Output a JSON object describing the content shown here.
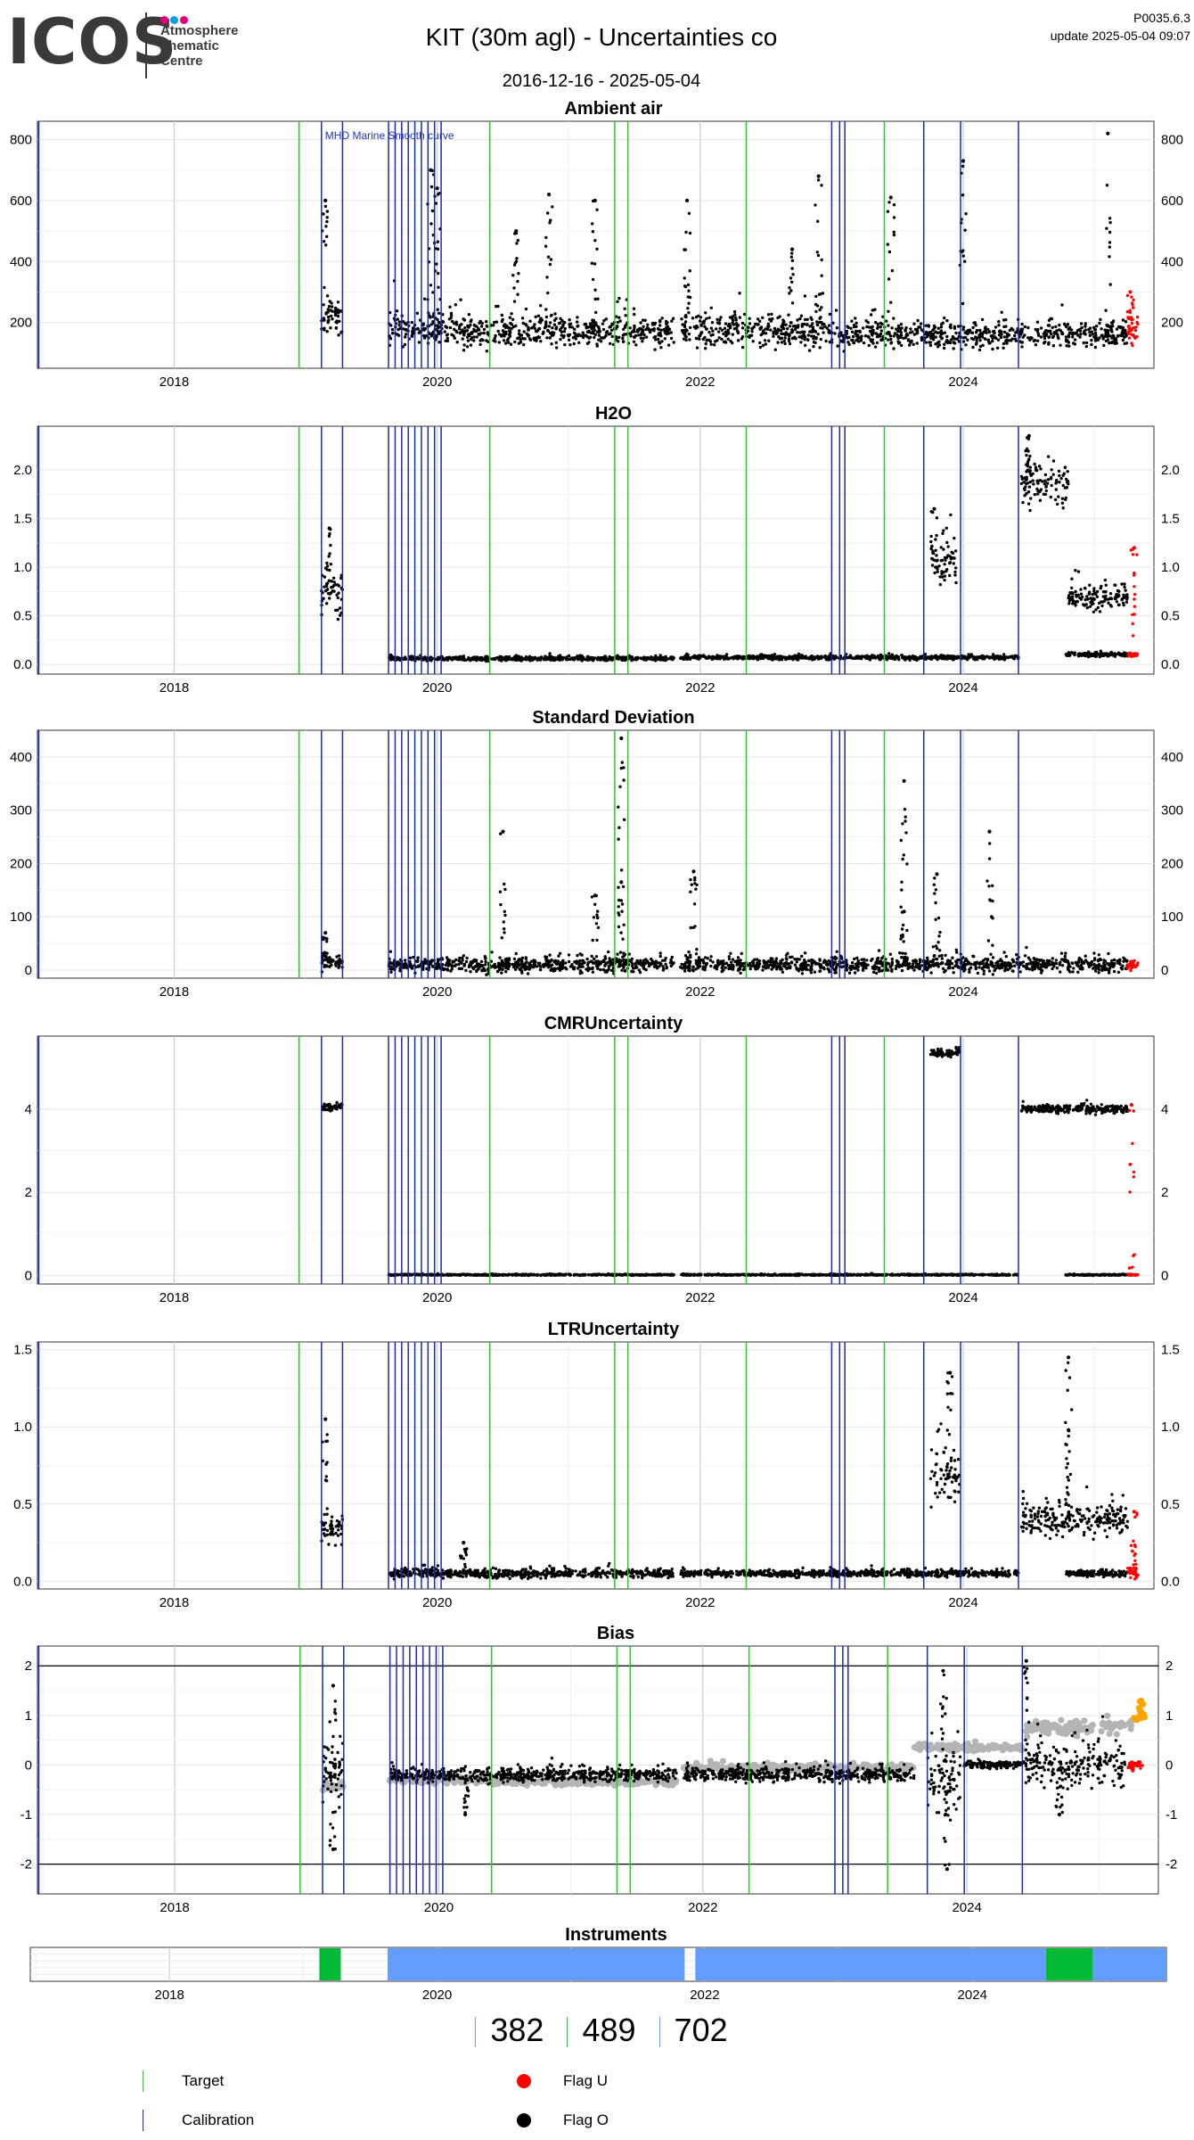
{
  "header": {
    "logo_text": "ICOS",
    "logo_sub": [
      "Atmosphere",
      "Thematic",
      "Centre"
    ],
    "title": "KIT  (30m agl) - Uncertainties co",
    "date_range": "2016-12-16 - 2025-05-04",
    "version": "P0035.6.3",
    "update": "update  2025-05-04 09:07"
  },
  "colors": {
    "target": "#22cc22",
    "calibration": "#1a2bb0",
    "flag_u": "#ff0000",
    "flag_o": "#000000",
    "grey_series": "#b4b4b4",
    "orange": "#ffa500",
    "logo_dots": [
      "#e6007e",
      "#00a0e3",
      "#e6007e"
    ]
  },
  "chart_data": [
    {
      "type": "scatter",
      "id": "ambient",
      "title": "Ambient air",
      "ylim": [
        50,
        860
      ],
      "yticks": [
        200,
        400,
        600,
        800
      ],
      "xticks": [
        "2018",
        "2020",
        "2022",
        "2024"
      ],
      "annotation": "MHD Marine Smooth curve",
      "target_lines": [
        2018.95,
        2020.4,
        2021.35,
        2021.45,
        2022.35,
        2023.4
      ],
      "calibration_lines": [
        2016.97,
        2019.12,
        2019.28,
        2019.63,
        2019.68,
        2019.73,
        2019.78,
        2019.83,
        2019.88,
        2019.93,
        2019.98,
        2020.03,
        2023.0,
        2023.06,
        2023.1,
        2023.7,
        2023.98,
        2024.42
      ],
      "series": [
        {
          "name": "Flag O",
          "segments": [
            {
              "x0": 2019.12,
              "x1": 2019.28,
              "base": 210,
              "spread": 90,
              "peaks": [
                [
                  2019.15,
                  600
                ]
              ]
            },
            {
              "x0": 2019.63,
              "x1": 2020.05,
              "base": 180,
              "spread": 80,
              "peaks": [
                [
                  2019.95,
                  700
                ],
                [
                  2020.0,
                  640
                ]
              ]
            },
            {
              "x0": 2020.05,
              "x1": 2021.8,
              "base": 170,
              "spread": 70,
              "peaks": [
                [
                  2020.85,
                  620
                ],
                [
                  2021.2,
                  600
                ],
                [
                  2020.6,
                  500
                ]
              ]
            },
            {
              "x0": 2021.85,
              "x1": 2023.05,
              "base": 175,
              "spread": 80,
              "peaks": [
                [
                  2021.9,
                  600
                ],
                [
                  2022.9,
                  680
                ],
                [
                  2022.7,
                  440
                ]
              ]
            },
            {
              "x0": 2023.05,
              "x1": 2025.25,
              "base": 160,
              "spread": 60,
              "peaks": [
                [
                  2024.0,
                  730
                ],
                [
                  2025.1,
                  820
                ],
                [
                  2023.45,
                  610
                ]
              ]
            }
          ]
        },
        {
          "name": "Flag U",
          "segments": [
            {
              "x0": 2025.25,
              "x1": 2025.33,
              "base": 170,
              "spread": 60,
              "peaks": [
                [
                  2025.27,
                  300
                ]
              ]
            }
          ]
        }
      ]
    },
    {
      "type": "scatter",
      "id": "h2o",
      "title": "H2O",
      "ylim": [
        -0.1,
        2.45
      ],
      "yticks": [
        0.0,
        0.5,
        1.0,
        1.5,
        2.0
      ],
      "xticks": [
        "2018",
        "2020",
        "2022",
        "2024"
      ],
      "target_lines": [
        2018.95,
        2020.4,
        2021.35,
        2021.45,
        2022.35,
        2023.4
      ],
      "calibration_lines": [
        2016.97,
        2019.12,
        2019.28,
        2019.63,
        2019.68,
        2019.73,
        2019.78,
        2019.83,
        2019.88,
        2019.93,
        2019.98,
        2020.03,
        2023.0,
        2023.06,
        2023.1,
        2023.7,
        2023.98,
        2024.42
      ],
      "series": [
        {
          "name": "Flag O",
          "segments": [
            {
              "x0": 2019.12,
              "x1": 2019.28,
              "base": 0.75,
              "spread": 0.35,
              "peaks": [
                [
                  2019.18,
                  1.4
                ]
              ]
            },
            {
              "x0": 2019.63,
              "x1": 2021.8,
              "base": 0.06,
              "spread": 0.03,
              "peaks": []
            },
            {
              "x0": 2021.85,
              "x1": 2024.42,
              "base": 0.07,
              "spread": 0.03,
              "peaks": []
            },
            {
              "x0": 2023.75,
              "x1": 2023.95,
              "base": 1.05,
              "spread": 0.3,
              "peaks": [
                [
                  2023.78,
                  1.6
                ]
              ]
            },
            {
              "x0": 2024.44,
              "x1": 2024.8,
              "base": 1.85,
              "spread": 0.35,
              "peaks": [
                [
                  2024.5,
                  2.35
                ]
              ]
            },
            {
              "x0": 2024.8,
              "x1": 2025.25,
              "base": 0.7,
              "spread": 0.2,
              "peaks": []
            },
            {
              "x0": 2024.78,
              "x1": 2025.25,
              "base": 0.1,
              "spread": 0.03,
              "peaks": []
            }
          ]
        },
        {
          "name": "Flag U",
          "segments": [
            {
              "x0": 2025.25,
              "x1": 2025.33,
              "base": 0.1,
              "spread": 0.03,
              "peaks": [
                [
                  2025.3,
                  1.2
                ]
              ]
            }
          ]
        }
      ]
    },
    {
      "type": "scatter",
      "id": "stddev",
      "title": "Standard Deviation",
      "ylim": [
        -15,
        450
      ],
      "yticks": [
        0,
        100,
        200,
        300,
        400
      ],
      "xticks": [
        "2018",
        "2020",
        "2022",
        "2024"
      ],
      "target_lines": [
        2018.95,
        2020.4,
        2021.35,
        2021.45,
        2022.35,
        2023.4
      ],
      "calibration_lines": [
        2016.97,
        2019.12,
        2019.28,
        2019.63,
        2019.68,
        2019.73,
        2019.78,
        2019.83,
        2019.88,
        2019.93,
        2019.98,
        2020.03,
        2023.0,
        2023.06,
        2023.1,
        2023.7,
        2023.98,
        2024.42
      ],
      "series": [
        {
          "name": "Flag O",
          "segments": [
            {
              "x0": 2019.12,
              "x1": 2019.28,
              "base": 15,
              "spread": 20,
              "peaks": [
                [
                  2019.15,
                  70
                ]
              ]
            },
            {
              "x0": 2019.63,
              "x1": 2021.8,
              "base": 10,
              "spread": 20,
              "peaks": [
                [
                  2020.5,
                  260
                ],
                [
                  2021.4,
                  435
                ],
                [
                  2021.2,
                  140
                ],
                [
                  2021.4,
                  165
                ]
              ]
            },
            {
              "x0": 2021.85,
              "x1": 2025.25,
              "base": 10,
              "spread": 20,
              "peaks": [
                [
                  2021.95,
                  185
                ],
                [
                  2023.55,
                  355
                ],
                [
                  2024.2,
                  260
                ],
                [
                  2023.55,
                  110
                ],
                [
                  2023.8,
                  180
                ]
              ]
            }
          ]
        },
        {
          "name": "Flag U",
          "segments": [
            {
              "x0": 2025.25,
              "x1": 2025.33,
              "base": 10,
              "spread": 15,
              "peaks": []
            }
          ]
        }
      ]
    },
    {
      "type": "scatter",
      "id": "cmr",
      "title": "CMRUncertainty",
      "ylim": [
        -0.2,
        5.75
      ],
      "yticks": [
        0,
        2,
        4
      ],
      "xticks": [
        "2018",
        "2020",
        "2022",
        "2024"
      ],
      "target_lines": [
        2018.95,
        2020.4,
        2021.35,
        2021.45,
        2022.35,
        2023.4
      ],
      "calibration_lines": [
        2016.97,
        2019.12,
        2019.28,
        2019.63,
        2019.68,
        2019.73,
        2019.78,
        2019.83,
        2019.88,
        2019.93,
        2019.98,
        2020.03,
        2023.0,
        2023.06,
        2023.1,
        2023.7,
        2023.98,
        2024.42
      ],
      "series": [
        {
          "name": "Flag O",
          "segments": [
            {
              "x0": 2019.12,
              "x1": 2019.28,
              "base": 4.05,
              "spread": 0.12,
              "peaks": []
            },
            {
              "x0": 2019.63,
              "x1": 2021.8,
              "base": 0.02,
              "spread": 0.02,
              "peaks": []
            },
            {
              "x0": 2021.85,
              "x1": 2024.42,
              "base": 0.02,
              "spread": 0.02,
              "peaks": []
            },
            {
              "x0": 2023.75,
              "x1": 2023.98,
              "base": 5.35,
              "spread": 0.12,
              "peaks": []
            },
            {
              "x0": 2024.44,
              "x1": 2025.25,
              "base": 4.0,
              "spread": 0.15,
              "peaks": []
            },
            {
              "x0": 2024.78,
              "x1": 2025.25,
              "base": 0.02,
              "spread": 0.02,
              "peaks": []
            }
          ]
        },
        {
          "name": "Flag U",
          "segments": [
            {
              "x0": 2025.25,
              "x1": 2025.33,
              "base": 0.02,
              "spread": 0.02,
              "peaks": [
                [
                  2025.28,
                  4.1
                ]
              ]
            }
          ]
        }
      ]
    },
    {
      "type": "scatter",
      "id": "ltr",
      "title": "LTRUncertainty",
      "ylim": [
        -0.05,
        1.55
      ],
      "yticks": [
        0.0,
        0.5,
        1.0,
        1.5
      ],
      "xticks": [
        "2018",
        "2020",
        "2022",
        "2024"
      ],
      "target_lines": [
        2018.95,
        2020.4,
        2021.35,
        2021.45,
        2022.35,
        2023.4
      ],
      "calibration_lines": [
        2016.97,
        2019.12,
        2019.28,
        2019.63,
        2019.68,
        2019.73,
        2019.78,
        2019.83,
        2019.88,
        2019.93,
        2019.98,
        2020.03,
        2023.0,
        2023.06,
        2023.1,
        2023.7,
        2023.98,
        2024.42
      ],
      "series": [
        {
          "name": "Flag O",
          "segments": [
            {
              "x0": 2019.12,
              "x1": 2019.28,
              "base": 0.35,
              "spread": 0.15,
              "peaks": [
                [
                  2019.15,
                  1.05
                ]
              ]
            },
            {
              "x0": 2019.63,
              "x1": 2021.8,
              "base": 0.05,
              "spread": 0.04,
              "peaks": [
                [
                  2020.2,
                  0.25
                ]
              ]
            },
            {
              "x0": 2021.85,
              "x1": 2024.42,
              "base": 0.05,
              "spread": 0.03,
              "peaks": []
            },
            {
              "x0": 2023.75,
              "x1": 2023.98,
              "base": 0.65,
              "spread": 0.3,
              "peaks": [
                [
                  2023.9,
                  1.35
                ]
              ]
            },
            {
              "x0": 2024.44,
              "x1": 2025.25,
              "base": 0.4,
              "spread": 0.15,
              "peaks": [
                [
                  2024.8,
                  1.45
                ],
                [
                  2024.8,
                  0.98
                ]
              ]
            },
            {
              "x0": 2024.78,
              "x1": 2025.25,
              "base": 0.05,
              "spread": 0.03,
              "peaks": []
            }
          ]
        },
        {
          "name": "Flag U",
          "segments": [
            {
              "x0": 2025.25,
              "x1": 2025.33,
              "base": 0.06,
              "spread": 0.05,
              "peaks": [
                [
                  2025.3,
                  0.45
                ]
              ]
            }
          ]
        }
      ]
    },
    {
      "type": "scatter",
      "id": "bias",
      "title": "Bias",
      "ylim": [
        -2.6,
        2.4
      ],
      "yticks": [
        -2,
        -1,
        0,
        1,
        2
      ],
      "xticks": [
        "2018",
        "2020",
        "2022",
        "2024"
      ],
      "hlines": [
        -2,
        2
      ],
      "target_lines": [
        2018.95,
        2020.4,
        2021.35,
        2021.45,
        2022.35,
        2023.4
      ],
      "calibration_lines": [
        2016.97,
        2019.12,
        2019.28,
        2019.63,
        2019.68,
        2019.73,
        2019.78,
        2019.83,
        2019.88,
        2019.93,
        2019.98,
        2020.03,
        2023.0,
        2023.06,
        2023.1,
        2023.7,
        2023.98,
        2024.42
      ],
      "series": [
        {
          "name": "grey",
          "segments": [
            {
              "x0": 2019.12,
              "x1": 2019.28,
              "base": -0.45,
              "spread": 0.1,
              "peaks": []
            },
            {
              "x0": 2019.63,
              "x1": 2020.4,
              "base": -0.3,
              "spread": 0.1,
              "peaks": []
            },
            {
              "x0": 2020.4,
              "x1": 2021.8,
              "base": -0.35,
              "spread": 0.08,
              "peaks": []
            },
            {
              "x0": 2021.85,
              "x1": 2023.6,
              "base": -0.05,
              "spread": 0.1,
              "peaks": []
            },
            {
              "x0": 2023.6,
              "x1": 2024.42,
              "base": 0.35,
              "spread": 0.1,
              "peaks": []
            },
            {
              "x0": 2024.44,
              "x1": 2025.25,
              "base": 0.75,
              "spread": 0.2,
              "peaks": []
            }
          ]
        },
        {
          "name": "Flag O",
          "segments": [
            {
              "x0": 2019.12,
              "x1": 2019.28,
              "base": -0.2,
              "spread": 0.8,
              "peaks": [
                [
                  2019.2,
                  1.6
                ],
                [
                  2019.2,
                  -1.7
                ]
              ]
            },
            {
              "x0": 2019.63,
              "x1": 2021.8,
              "base": -0.2,
              "spread": 0.2,
              "peaks": [
                [
                  2020.2,
                  -1.0
                ]
              ]
            },
            {
              "x0": 2021.85,
              "x1": 2023.6,
              "base": -0.2,
              "spread": 0.2,
              "peaks": []
            },
            {
              "x0": 2023.7,
              "x1": 2023.95,
              "base": -0.3,
              "spread": 0.9,
              "peaks": [
                [
                  2023.82,
                  1.9
                ],
                [
                  2023.85,
                  -2.1
                ]
              ]
            },
            {
              "x0": 2023.98,
              "x1": 2024.42,
              "base": 0.0,
              "spread": 0.1,
              "peaks": []
            },
            {
              "x0": 2024.44,
              "x1": 2025.2,
              "base": 0.0,
              "spread": 0.6,
              "peaks": [
                [
                  2024.45,
                  2.1
                ],
                [
                  2024.7,
                  -1.0
                ]
              ]
            }
          ]
        },
        {
          "name": "Flag U",
          "segments": [
            {
              "x0": 2025.22,
              "x1": 2025.33,
              "base": 0.0,
              "spread": 0.15,
              "peaks": []
            }
          ]
        },
        {
          "name": "orange",
          "segments": [
            {
              "x0": 2025.25,
              "x1": 2025.35,
              "base": 0.95,
              "spread": 0.12,
              "peaks": [
                [
                  2025.32,
                  1.3
                ]
              ]
            }
          ]
        }
      ]
    },
    {
      "type": "bar",
      "id": "instruments",
      "title": "Instruments",
      "xticks": [
        "2018",
        "2020",
        "2022",
        "2024"
      ],
      "bars": [
        {
          "x0": 2019.12,
          "x1": 2019.28,
          "color": "#00bb33"
        },
        {
          "x0": 2019.63,
          "x1": 2021.85,
          "color": "#619cff"
        },
        {
          "x0": 2021.93,
          "x1": 2024.55,
          "color": "#619cff"
        },
        {
          "x0": 2024.55,
          "x1": 2024.9,
          "color": "#00bb33"
        },
        {
          "x0": 2024.9,
          "x1": 2025.45,
          "color": "#619cff"
        }
      ]
    }
  ],
  "counts": [
    {
      "value": "382",
      "color": "#f08080"
    },
    {
      "value": "489",
      "color": "#22cc22"
    },
    {
      "value": "702",
      "color": "#619cff"
    }
  ],
  "legend": {
    "target": "Target",
    "calibration": "Calibration",
    "flag_u": "Flag U",
    "flag_o": "Flag O"
  }
}
